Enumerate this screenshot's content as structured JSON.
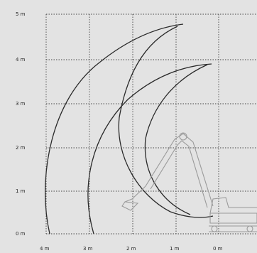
{
  "diagram": {
    "background_color": "#e3e3e3",
    "line_color": "#2a2a2a",
    "grid_color": "#444444",
    "machine_color": "#9a9a9a",
    "y_axis": {
      "labels": [
        "5 m",
        "4 m",
        "3 m",
        "2 m",
        "1 m",
        "0 m"
      ]
    },
    "x_axis": {
      "labels": [
        "4 m",
        "3 m",
        "2 m",
        "1 m",
        "0 m"
      ]
    }
  }
}
